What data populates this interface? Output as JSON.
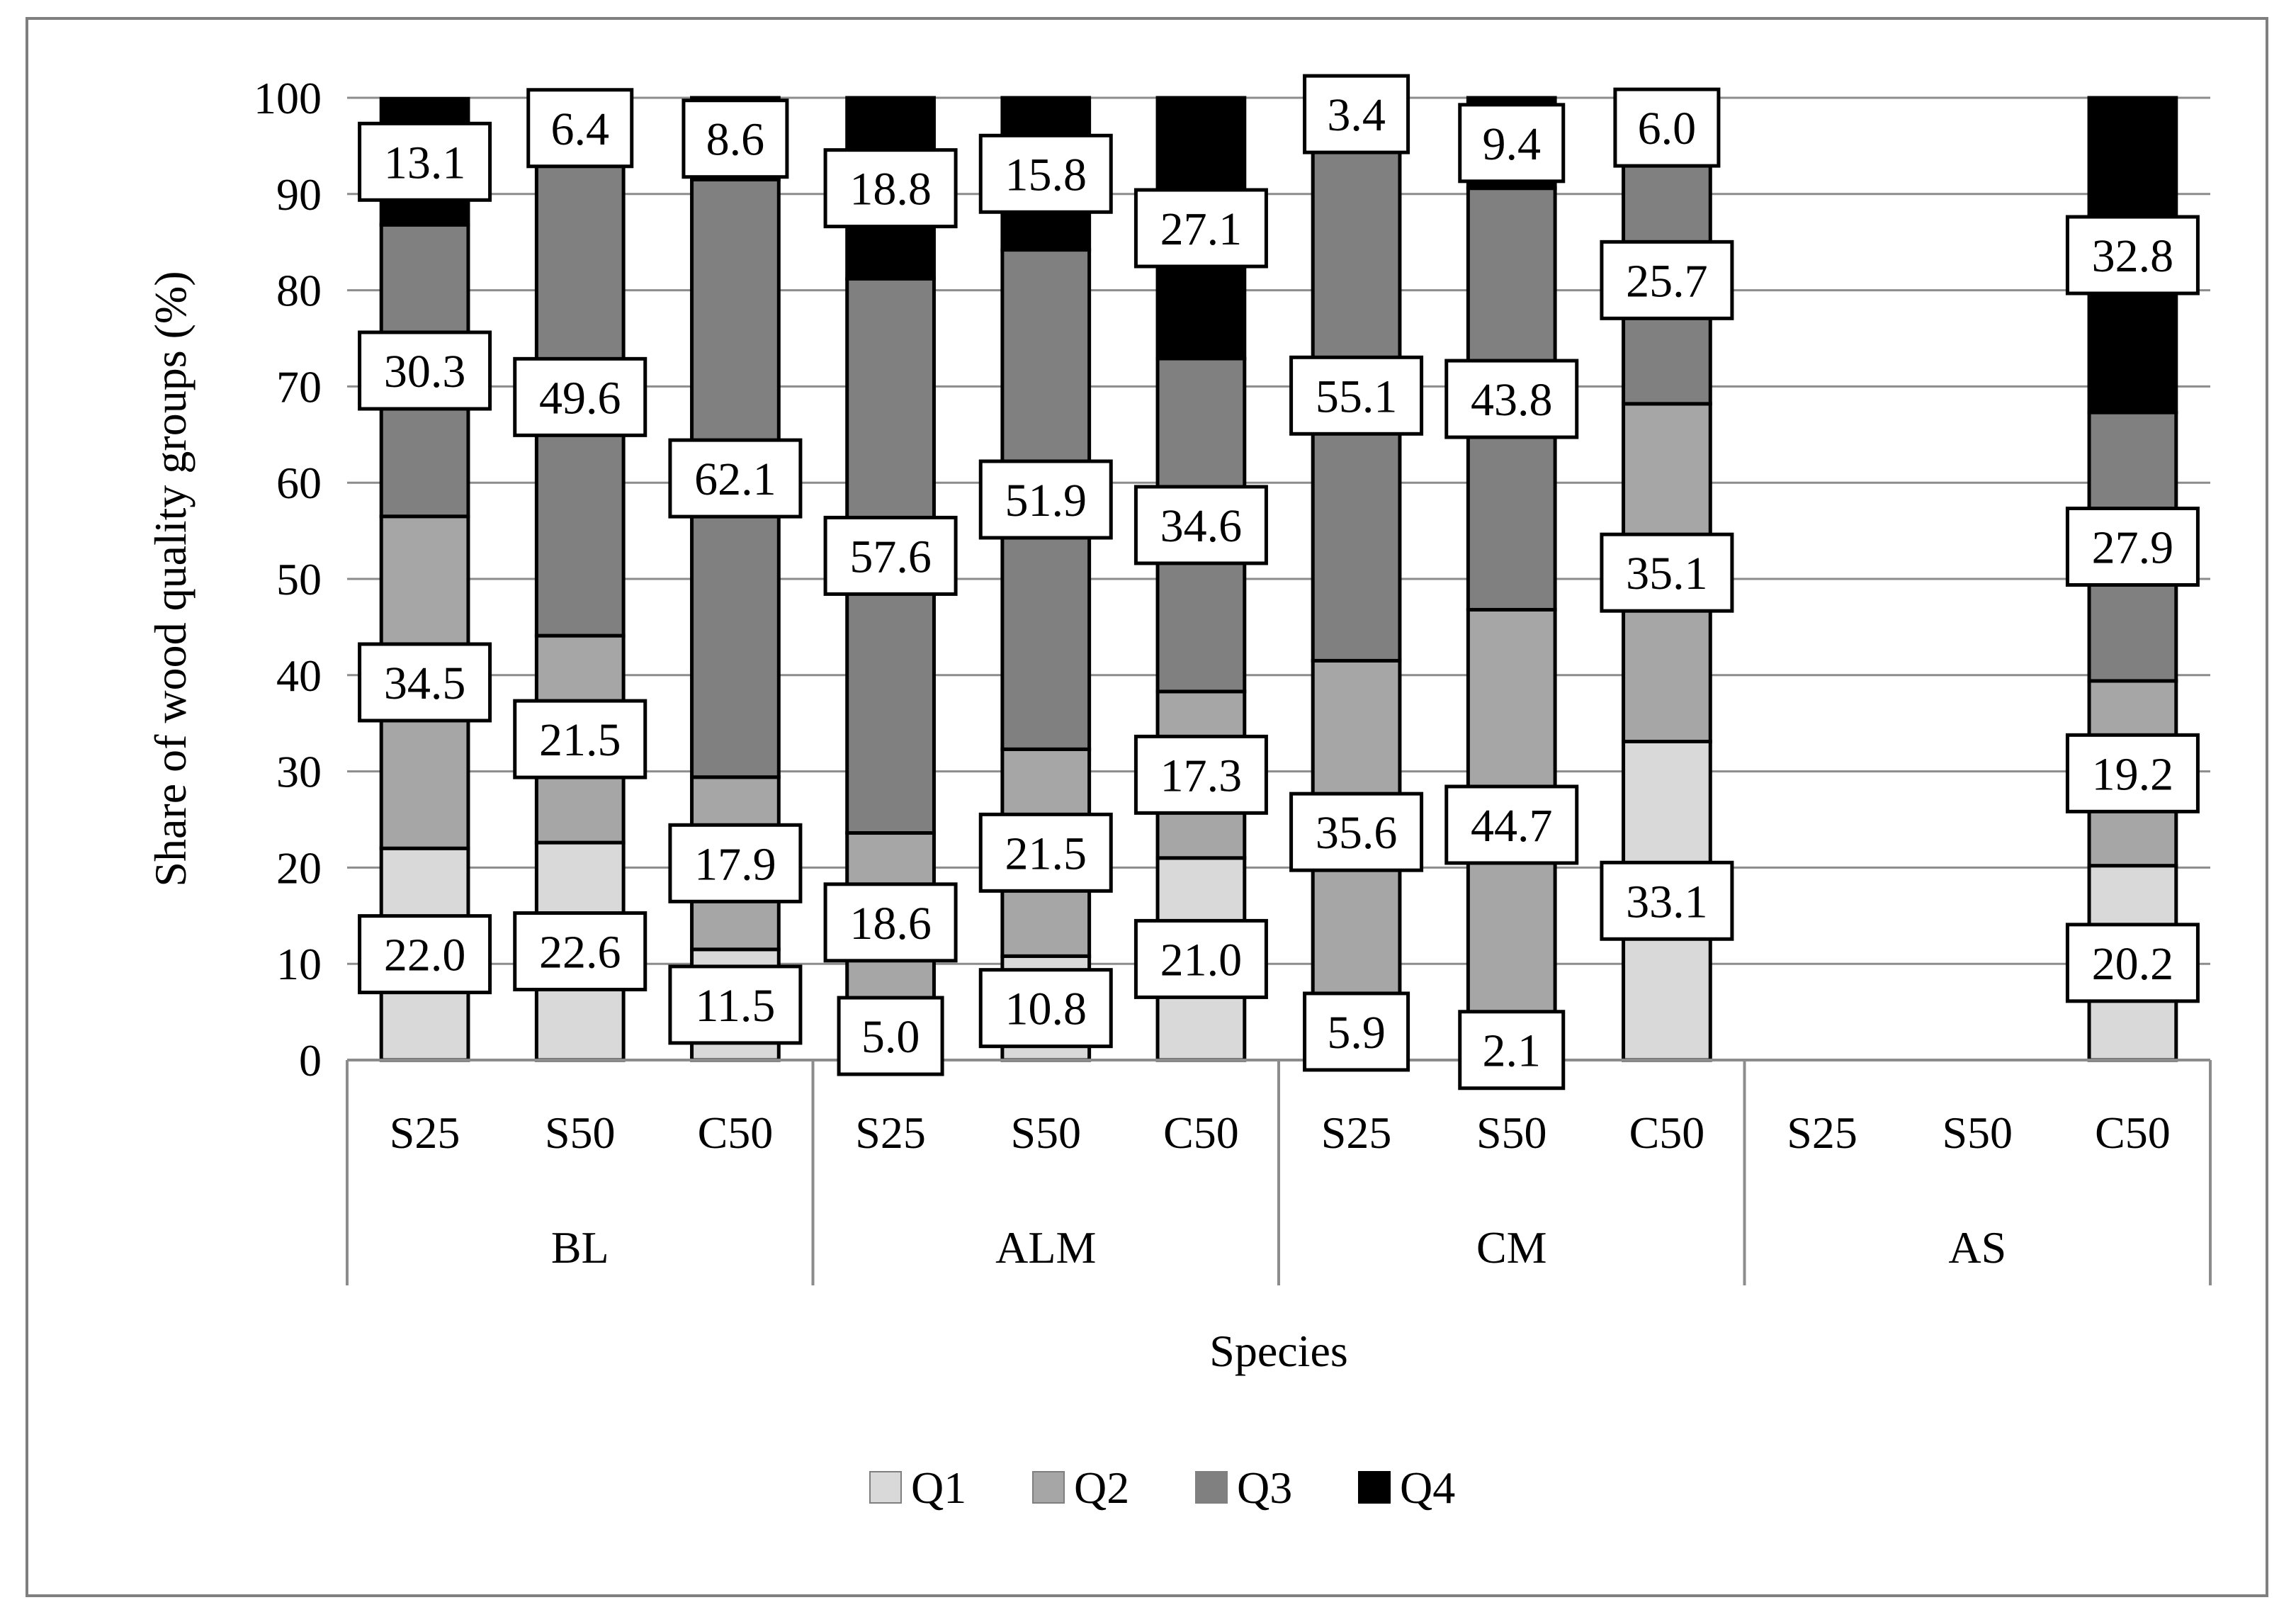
{
  "chart_data": {
    "type": "bar",
    "stacked": true,
    "title": "",
    "xlabel": "Species",
    "ylabel": "Share of wood quality groups (%)",
    "ylim": [
      0,
      100
    ],
    "yticks": [
      "0",
      "10",
      "20",
      "30",
      "40",
      "50",
      "60",
      "70",
      "80",
      "90",
      "100"
    ],
    "grid": true,
    "legend_position": "bottom",
    "groups": [
      {
        "name": "BL",
        "categories": [
          "S25",
          "S50",
          "C50"
        ]
      },
      {
        "name": "ALM",
        "categories": [
          "S25",
          "S50",
          "C50"
        ]
      },
      {
        "name": "CM",
        "categories": [
          "S25",
          "S50",
          "C50"
        ]
      },
      {
        "name": "AS",
        "categories": [
          "S25",
          "S50",
          "C50"
        ]
      }
    ],
    "series": [
      {
        "name": "Q1",
        "color": "#d9d9d9",
        "values": [
          22.0,
          22.6,
          11.5,
          5.0,
          10.8,
          21.0,
          5.9,
          2.1,
          33.1,
          null,
          null,
          20.2
        ],
        "labels": [
          "22.0",
          "22.6",
          "11.5",
          "5.0",
          "10.8",
          "21.0",
          "5.9",
          "2.1",
          "33.1",
          "",
          "",
          "20.2"
        ]
      },
      {
        "name": "Q2",
        "color": "#a6a6a6",
        "values": [
          34.5,
          21.5,
          17.9,
          18.6,
          21.5,
          17.3,
          35.6,
          44.7,
          35.1,
          null,
          null,
          19.2
        ],
        "labels": [
          "34.5",
          "21.5",
          "17.9",
          "18.6",
          "21.5",
          "17.3",
          "35.6",
          "44.7",
          "35.1",
          "",
          "",
          "19.2"
        ]
      },
      {
        "name": "Q3",
        "color": "#808080",
        "values": [
          30.3,
          49.6,
          62.1,
          57.6,
          51.9,
          34.6,
          55.1,
          43.8,
          25.7,
          null,
          null,
          27.9
        ],
        "labels": [
          "30.3",
          "49.6",
          "62.1",
          "57.6",
          "51.9",
          "34.6",
          "55.1",
          "43.8",
          "25.7",
          "",
          "",
          "27.9"
        ]
      },
      {
        "name": "Q4",
        "color": "#000000",
        "values": [
          13.1,
          6.4,
          8.6,
          18.8,
          15.8,
          27.1,
          3.4,
          9.4,
          6.0,
          null,
          null,
          32.8
        ],
        "labels": [
          "13.1",
          "6.4",
          "8.6",
          "18.8",
          "15.8",
          "27.1",
          "3.4",
          "9.4",
          "6.0",
          "",
          "",
          "32.8"
        ]
      }
    ]
  }
}
